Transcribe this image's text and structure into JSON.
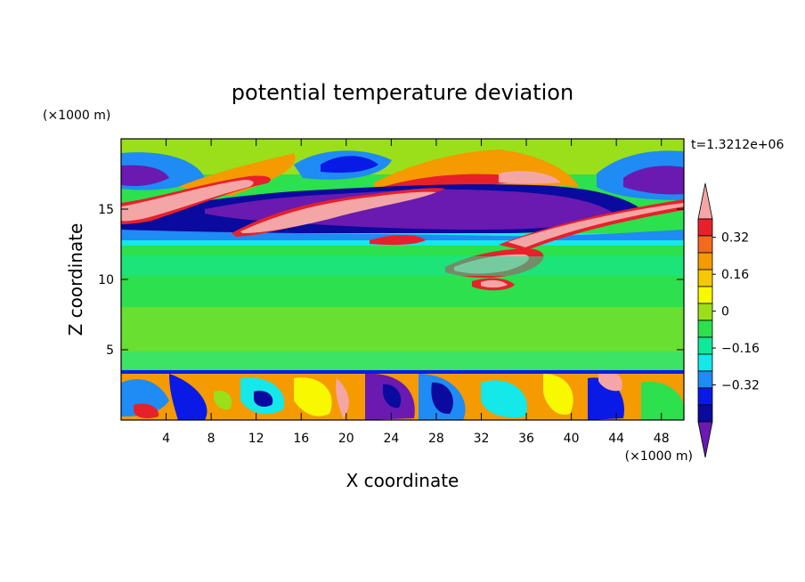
{
  "chart_data": {
    "type": "heatmap",
    "title": "potential temperature deviation",
    "xlabel": "X coordinate",
    "ylabel": "Z coordinate",
    "x_unit": "(×1000 m)",
    "y_unit": "(×1000 m)",
    "time_label": "t=1.3212e+06",
    "xlim": [
      0,
      50
    ],
    "ylim": [
      0,
      20
    ],
    "x_ticks": [
      4,
      8,
      12,
      16,
      20,
      24,
      28,
      32,
      36,
      40,
      44,
      48
    ],
    "y_ticks": [
      5,
      10,
      15
    ],
    "colorbar": {
      "levels": [
        -0.48,
        -0.4,
        -0.32,
        -0.24,
        -0.16,
        -0.08,
        0,
        0.08,
        0.16,
        0.24,
        0.32,
        0.4,
        0.48
      ],
      "labels": [
        "0.32",
        "0.16",
        "0",
        "−0.16",
        "−0.32"
      ],
      "label_values": [
        0.32,
        0.16,
        0,
        -0.16,
        -0.32
      ],
      "colors": [
        "#f4a6a6",
        "#e8202a",
        "#f26a1e",
        "#f59a00",
        "#f5c800",
        "#f8f800",
        "#9adf1a",
        "#2ce04e",
        "#10e89a",
        "#14e8e8",
        "#1f8bf4",
        "#0a1ae6",
        "#0a0a9e",
        "#6a1ab0"
      ],
      "extend": "both"
    },
    "grid": false
  }
}
